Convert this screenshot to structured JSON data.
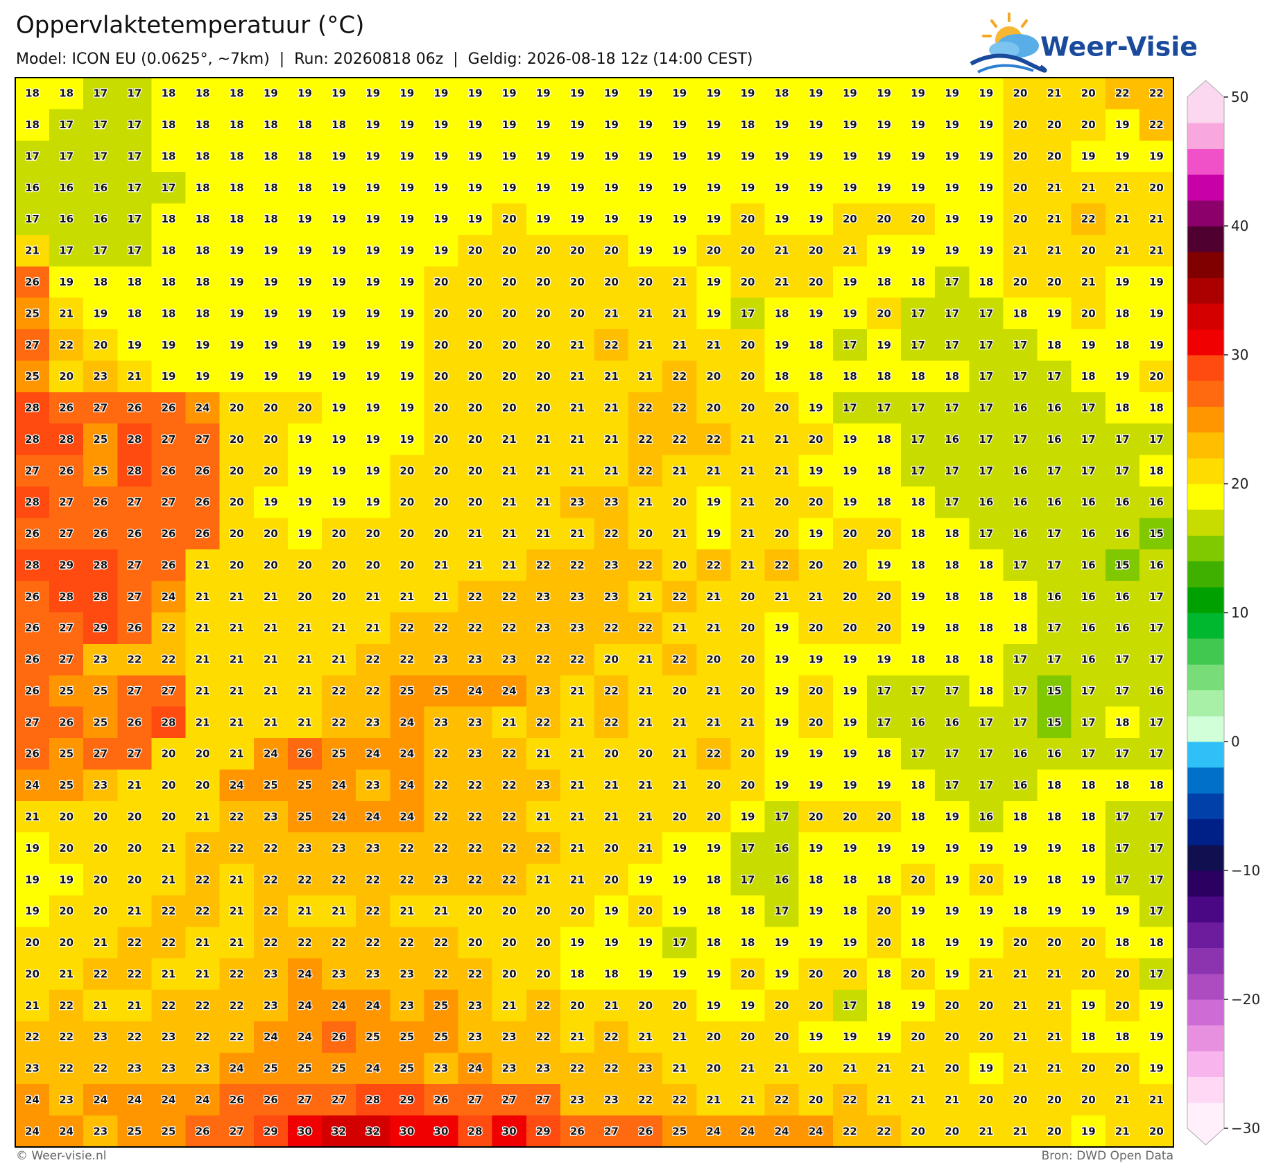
{
  "chart_data": {
    "type": "heatmap",
    "title": "Oppervlaktetemperatuur (°C)",
    "subtitle": "Model: ICON EU (0.0625°, ~7km)  |  Run: 20260818 06z  |  Geldig: 2026-08-18 12z (14:00 CEST)",
    "logo_text": "Weer-Visie",
    "credit": "© Weer-visie.nl",
    "source": "Bron: DWD Open Data",
    "values": [
      [
        18,
        18,
        17,
        17,
        18,
        18,
        18,
        19,
        19,
        19,
        19,
        19,
        19,
        19,
        19,
        19,
        19,
        19,
        19,
        19,
        19,
        19,
        18,
        19,
        19,
        19,
        19,
        19,
        19,
        20,
        21,
        20,
        22,
        22
      ],
      [
        18,
        17,
        17,
        17,
        18,
        18,
        18,
        18,
        18,
        18,
        19,
        19,
        19,
        19,
        19,
        19,
        19,
        19,
        19,
        19,
        19,
        18,
        19,
        19,
        19,
        19,
        19,
        19,
        19,
        20,
        20,
        20,
        19,
        22
      ],
      [
        17,
        17,
        17,
        17,
        18,
        18,
        18,
        18,
        18,
        19,
        19,
        19,
        19,
        19,
        19,
        19,
        19,
        19,
        19,
        19,
        19,
        19,
        19,
        19,
        19,
        19,
        19,
        19,
        19,
        20,
        20,
        19,
        19,
        19
      ],
      [
        16,
        16,
        16,
        17,
        17,
        18,
        18,
        18,
        18,
        19,
        19,
        19,
        19,
        19,
        19,
        19,
        19,
        19,
        19,
        19,
        19,
        19,
        19,
        19,
        19,
        19,
        19,
        19,
        19,
        20,
        21,
        21,
        21,
        20
      ],
      [
        17,
        16,
        16,
        17,
        18,
        18,
        18,
        18,
        19,
        19,
        19,
        19,
        19,
        19,
        20,
        19,
        19,
        19,
        19,
        19,
        19,
        20,
        19,
        19,
        20,
        20,
        20,
        19,
        19,
        20,
        21,
        22,
        21,
        21
      ],
      [
        21,
        17,
        17,
        17,
        18,
        18,
        19,
        19,
        19,
        19,
        19,
        19,
        19,
        20,
        20,
        20,
        20,
        20,
        19,
        19,
        20,
        20,
        21,
        20,
        21,
        19,
        19,
        19,
        19,
        21,
        21,
        20,
        21,
        21
      ],
      [
        26,
        19,
        18,
        18,
        18,
        18,
        19,
        19,
        19,
        19,
        19,
        19,
        20,
        20,
        20,
        20,
        20,
        20,
        20,
        21,
        19,
        20,
        21,
        20,
        19,
        18,
        18,
        17,
        18,
        20,
        20,
        21,
        19,
        19
      ],
      [
        25,
        21,
        19,
        18,
        18,
        18,
        19,
        19,
        19,
        19,
        19,
        19,
        20,
        20,
        20,
        20,
        20,
        21,
        21,
        21,
        19,
        17,
        18,
        19,
        19,
        20,
        17,
        17,
        17,
        18,
        19,
        20,
        18,
        19
      ],
      [
        27,
        22,
        20,
        19,
        19,
        19,
        19,
        19,
        19,
        19,
        19,
        19,
        20,
        20,
        20,
        20,
        21,
        22,
        21,
        21,
        21,
        20,
        19,
        18,
        17,
        19,
        17,
        17,
        17,
        17,
        18,
        19,
        18,
        19
      ],
      [
        25,
        20,
        23,
        21,
        19,
        19,
        19,
        19,
        19,
        19,
        19,
        19,
        20,
        20,
        20,
        20,
        21,
        21,
        21,
        22,
        20,
        20,
        18,
        18,
        18,
        18,
        18,
        18,
        17,
        17,
        17,
        18,
        19,
        20
      ],
      [
        28,
        26,
        27,
        26,
        26,
        24,
        20,
        20,
        20,
        19,
        19,
        19,
        20,
        20,
        20,
        20,
        21,
        21,
        22,
        22,
        20,
        20,
        20,
        19,
        17,
        17,
        17,
        17,
        17,
        16,
        16,
        17,
        18,
        18
      ],
      [
        28,
        28,
        25,
        28,
        27,
        27,
        20,
        20,
        19,
        19,
        19,
        19,
        20,
        20,
        21,
        21,
        21,
        21,
        22,
        22,
        22,
        21,
        21,
        20,
        19,
        18,
        17,
        16,
        17,
        17,
        16,
        17,
        17,
        17
      ],
      [
        27,
        26,
        25,
        28,
        26,
        26,
        20,
        20,
        19,
        19,
        19,
        20,
        20,
        20,
        21,
        21,
        21,
        21,
        22,
        21,
        21,
        21,
        21,
        19,
        19,
        18,
        17,
        17,
        17,
        16,
        17,
        17,
        17,
        18
      ],
      [
        28,
        27,
        26,
        27,
        27,
        26,
        20,
        19,
        19,
        19,
        19,
        20,
        20,
        20,
        21,
        21,
        23,
        23,
        21,
        20,
        19,
        21,
        20,
        20,
        19,
        18,
        18,
        17,
        16,
        16,
        16,
        16,
        16,
        16
      ],
      [
        26,
        27,
        26,
        26,
        26,
        26,
        20,
        20,
        19,
        20,
        20,
        20,
        20,
        21,
        21,
        21,
        21,
        22,
        20,
        21,
        19,
        21,
        20,
        19,
        20,
        20,
        18,
        18,
        17,
        16,
        17,
        16,
        16,
        15
      ],
      [
        28,
        29,
        28,
        27,
        26,
        21,
        20,
        20,
        20,
        20,
        20,
        20,
        21,
        21,
        21,
        22,
        22,
        23,
        22,
        20,
        22,
        21,
        22,
        20,
        20,
        19,
        18,
        18,
        18,
        17,
        17,
        16,
        15,
        16
      ],
      [
        26,
        28,
        28,
        27,
        24,
        21,
        21,
        21,
        20,
        20,
        21,
        21,
        21,
        22,
        22,
        23,
        23,
        23,
        21,
        22,
        21,
        20,
        21,
        21,
        20,
        20,
        19,
        18,
        18,
        18,
        16,
        16,
        16,
        17
      ],
      [
        26,
        27,
        29,
        26,
        22,
        21,
        21,
        21,
        21,
        21,
        21,
        22,
        22,
        22,
        22,
        23,
        23,
        22,
        22,
        21,
        21,
        20,
        19,
        20,
        20,
        20,
        19,
        18,
        18,
        18,
        17,
        16,
        16,
        17
      ],
      [
        26,
        27,
        23,
        22,
        22,
        21,
        21,
        21,
        21,
        21,
        22,
        22,
        23,
        23,
        23,
        22,
        22,
        20,
        21,
        22,
        20,
        20,
        19,
        19,
        19,
        19,
        18,
        18,
        18,
        17,
        17,
        16,
        17,
        17
      ],
      [
        26,
        25,
        25,
        27,
        27,
        21,
        21,
        21,
        21,
        22,
        22,
        25,
        25,
        24,
        24,
        23,
        21,
        22,
        21,
        20,
        21,
        20,
        19,
        20,
        19,
        17,
        17,
        17,
        18,
        17,
        15,
        17,
        17,
        16
      ],
      [
        27,
        26,
        25,
        26,
        28,
        21,
        21,
        21,
        21,
        22,
        23,
        24,
        23,
        23,
        21,
        22,
        21,
        22,
        21,
        21,
        21,
        21,
        19,
        20,
        19,
        17,
        16,
        16,
        17,
        17,
        15,
        17,
        18,
        17
      ],
      [
        26,
        25,
        27,
        27,
        20,
        20,
        21,
        24,
        26,
        25,
        24,
        24,
        22,
        23,
        22,
        21,
        21,
        20,
        20,
        21,
        22,
        20,
        19,
        19,
        19,
        18,
        17,
        17,
        17,
        16,
        16,
        17,
        17,
        17
      ],
      [
        24,
        25,
        23,
        21,
        20,
        20,
        24,
        25,
        25,
        24,
        23,
        24,
        22,
        22,
        22,
        23,
        21,
        21,
        21,
        21,
        20,
        20,
        19,
        19,
        19,
        19,
        18,
        17,
        17,
        16,
        18,
        18,
        18,
        18
      ],
      [
        21,
        20,
        20,
        20,
        20,
        21,
        22,
        23,
        25,
        24,
        24,
        24,
        22,
        22,
        22,
        21,
        21,
        21,
        21,
        20,
        20,
        19,
        17,
        20,
        20,
        20,
        18,
        19,
        16,
        18,
        18,
        18,
        17,
        17
      ],
      [
        19,
        20,
        20,
        20,
        21,
        22,
        22,
        22,
        23,
        23,
        23,
        22,
        22,
        22,
        22,
        22,
        21,
        20,
        21,
        19,
        19,
        17,
        16,
        19,
        19,
        19,
        19,
        19,
        19,
        19,
        19,
        18,
        17,
        17
      ],
      [
        19,
        19,
        20,
        20,
        21,
        22,
        21,
        22,
        22,
        22,
        22,
        22,
        23,
        22,
        22,
        21,
        21,
        20,
        19,
        19,
        18,
        17,
        16,
        18,
        18,
        18,
        20,
        19,
        20,
        19,
        18,
        19,
        17,
        17
      ],
      [
        19,
        20,
        20,
        21,
        22,
        22,
        21,
        22,
        21,
        21,
        22,
        21,
        21,
        20,
        20,
        20,
        20,
        19,
        20,
        19,
        18,
        18,
        17,
        19,
        18,
        20,
        19,
        19,
        19,
        18,
        19,
        19,
        19,
        17
      ],
      [
        20,
        20,
        21,
        22,
        22,
        21,
        21,
        22,
        22,
        22,
        22,
        22,
        22,
        20,
        20,
        20,
        19,
        19,
        19,
        17,
        18,
        18,
        19,
        19,
        19,
        20,
        18,
        19,
        19,
        20,
        20,
        20,
        18,
        18
      ],
      [
        20,
        21,
        22,
        22,
        21,
        21,
        22,
        23,
        24,
        23,
        23,
        23,
        22,
        22,
        20,
        20,
        18,
        18,
        19,
        19,
        19,
        20,
        19,
        20,
        20,
        18,
        20,
        19,
        21,
        21,
        21,
        20,
        20,
        17
      ],
      [
        21,
        22,
        21,
        21,
        22,
        22,
        22,
        23,
        24,
        24,
        24,
        23,
        25,
        23,
        21,
        22,
        20,
        21,
        20,
        20,
        19,
        19,
        20,
        20,
        17,
        18,
        19,
        20,
        20,
        21,
        21,
        19,
        20,
        19
      ],
      [
        22,
        22,
        23,
        22,
        23,
        22,
        22,
        24,
        24,
        26,
        25,
        25,
        25,
        23,
        23,
        22,
        21,
        22,
        21,
        21,
        20,
        20,
        20,
        19,
        19,
        19,
        20,
        20,
        20,
        21,
        21,
        18,
        18,
        19
      ],
      [
        23,
        22,
        22,
        23,
        23,
        23,
        24,
        25,
        25,
        25,
        24,
        25,
        23,
        24,
        23,
        23,
        22,
        22,
        23,
        21,
        20,
        21,
        21,
        20,
        21,
        21,
        21,
        20,
        19,
        21,
        21,
        20,
        20,
        19
      ],
      [
        24,
        23,
        24,
        24,
        24,
        24,
        26,
        26,
        27,
        27,
        28,
        29,
        26,
        27,
        27,
        27,
        23,
        23,
        22,
        22,
        21,
        21,
        22,
        20,
        22,
        21,
        21,
        21,
        20,
        20,
        20,
        20,
        21,
        21
      ],
      [
        24,
        24,
        23,
        25,
        25,
        26,
        27,
        29,
        30,
        32,
        32,
        30,
        30,
        28,
        30,
        29,
        26,
        27,
        26,
        25,
        24,
        24,
        24,
        24,
        22,
        22,
        20,
        20,
        21,
        21,
        20,
        19,
        21,
        20
      ]
    ],
    "colorbar": {
      "lim": [
        -30,
        50
      ],
      "ticks": [
        50,
        40,
        30,
        20,
        10,
        0,
        {
          "value": -10,
          "label": "−10"
        },
        {
          "value": -20,
          "label": "−20"
        },
        {
          "value": -30,
          "label": "−30"
        }
      ],
      "colors": [
        "#fff0fc",
        "#ffd8f6",
        "#f8b4ec",
        "#e890e0",
        "#cc6cd4",
        "#ac4cc0",
        "#8c34b0",
        "#6c1c9c",
        "#4a0884",
        "#2a0060",
        "#101050",
        "#002088",
        "#0040a8",
        "#0070c8",
        "#30c0f8",
        "#d0ffd8",
        "#a8f0a8",
        "#78dc78",
        "#40c850",
        "#00b830",
        "#00a000",
        "#40b000",
        "#80c800",
        "#c8dc00",
        "#ffff00",
        "#ffdc00",
        "#ffbe00",
        "#ff9600",
        "#ff6a10",
        "#ff4a10",
        "#f00000",
        "#d40000",
        "#aa0000",
        "#800000",
        "#500030",
        "#8c006c",
        "#c800a8",
        "#f050c8",
        "#f8a8dc",
        "#fcd8f0"
      ]
    }
  }
}
